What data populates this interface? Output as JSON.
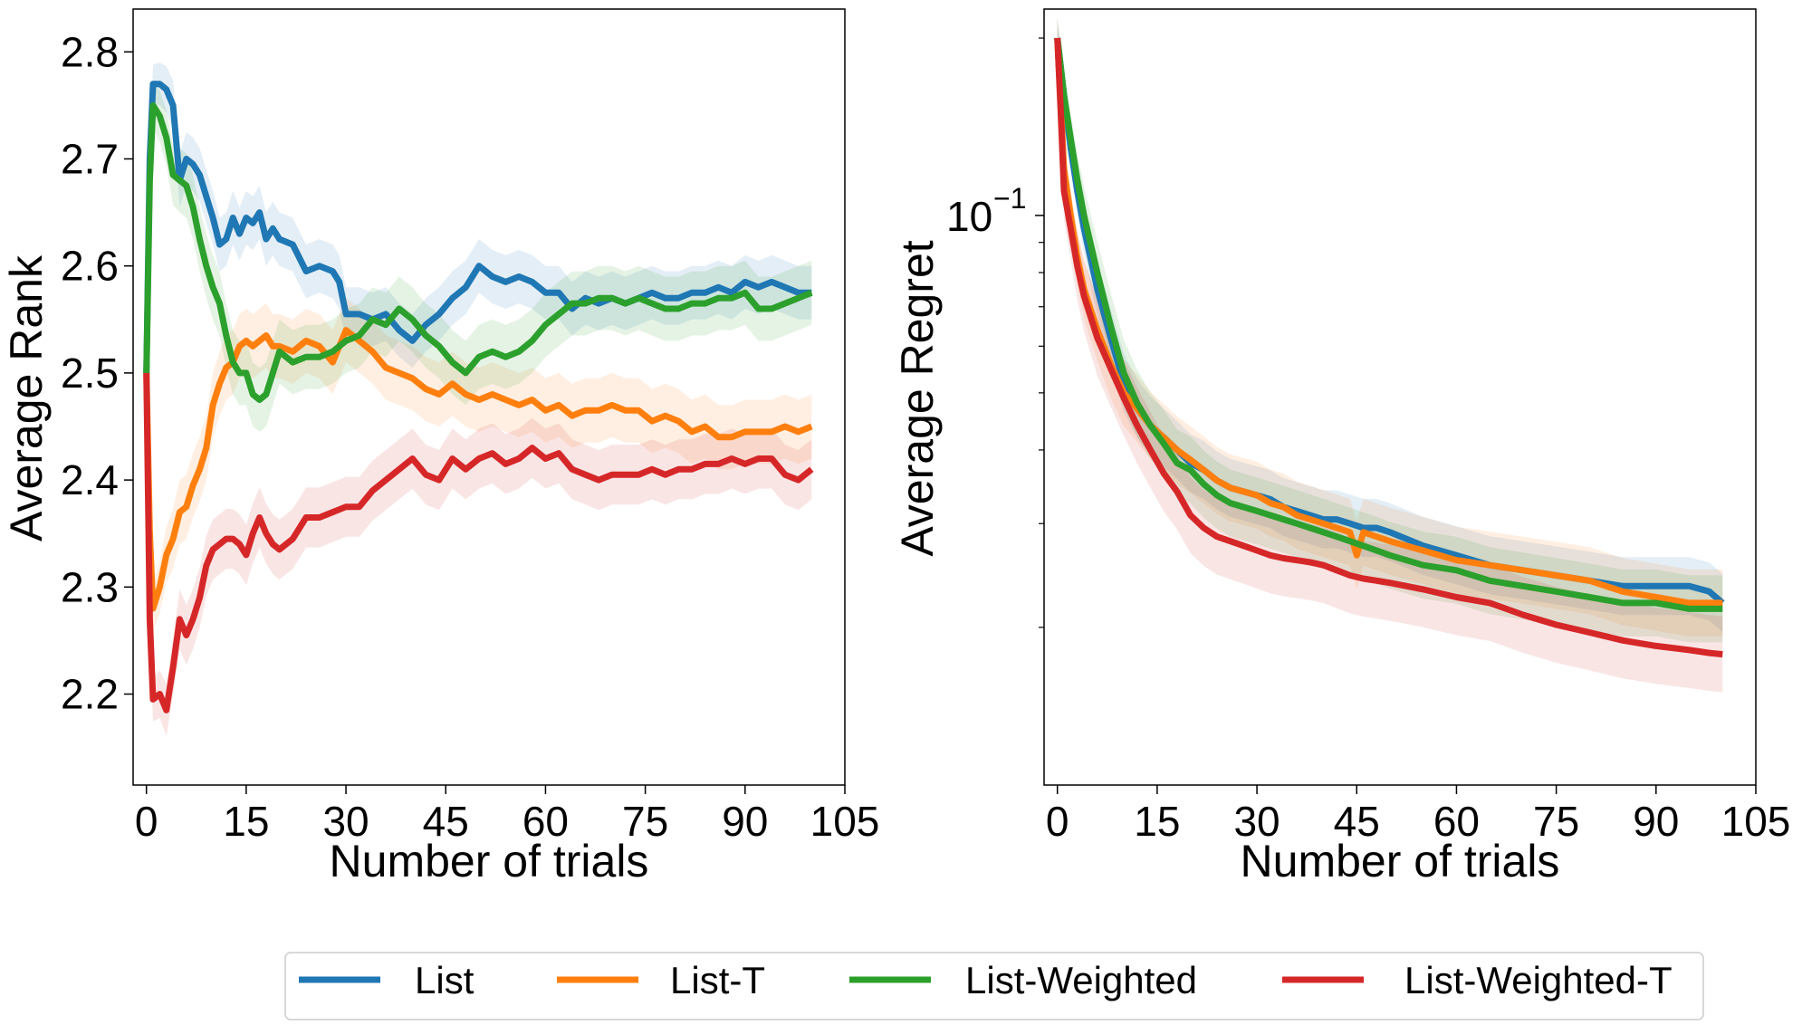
{
  "colors": {
    "List": "#1f77b4",
    "List-T": "#ff7f0e",
    "List-Weighted": "#2ca02c",
    "List-Weighted-T": "#d62728"
  },
  "legend": {
    "items": [
      "List",
      "List-T",
      "List-Weighted",
      "List-Weighted-T"
    ],
    "placement": "bottom-center"
  },
  "chart_data": [
    {
      "type": "line",
      "xlabel": "Number of trials",
      "ylabel": "Average Rank",
      "xlim": [
        -2,
        105
      ],
      "ylim": [
        2.115,
        2.84
      ],
      "xticks": [
        0,
        15,
        30,
        45,
        60,
        75,
        90,
        105
      ],
      "xtick_labels": [
        "0",
        "15",
        "30",
        "45",
        "60",
        "75",
        "90",
        "105"
      ],
      "yticks": [
        2.2,
        2.3,
        2.4,
        2.5,
        2.6,
        2.7,
        2.8
      ],
      "ytick_labels": [
        "2.2",
        "2.3",
        "2.4",
        "2.5",
        "2.6",
        "2.7",
        "2.8"
      ],
      "grid": false,
      "series": [
        {
          "name": "List",
          "x": [
            0,
            0.5,
            1,
            2,
            3,
            4,
            5,
            6,
            7,
            8,
            9,
            10,
            11,
            12,
            13,
            14,
            15,
            16,
            17,
            18,
            19,
            20,
            22,
            24,
            26,
            28,
            29,
            30,
            32,
            34,
            36,
            38,
            40,
            42,
            44,
            46,
            48,
            50,
            52,
            54,
            56,
            58,
            60,
            62,
            64,
            66,
            68,
            70,
            72,
            74,
            76,
            78,
            80,
            82,
            84,
            86,
            88,
            90,
            92,
            94,
            96,
            98,
            100
          ],
          "y": [
            2.5,
            2.7,
            2.77,
            2.77,
            2.765,
            2.75,
            2.68,
            2.7,
            2.695,
            2.685,
            2.665,
            2.645,
            2.62,
            2.625,
            2.645,
            2.63,
            2.645,
            2.64,
            2.65,
            2.625,
            2.635,
            2.625,
            2.62,
            2.595,
            2.6,
            2.595,
            2.585,
            2.555,
            2.555,
            2.55,
            2.555,
            2.54,
            2.53,
            2.545,
            2.555,
            2.57,
            2.58,
            2.6,
            2.59,
            2.585,
            2.59,
            2.585,
            2.575,
            2.575,
            2.56,
            2.57,
            2.565,
            2.57,
            2.565,
            2.57,
            2.575,
            2.57,
            2.57,
            2.575,
            2.575,
            2.58,
            2.575,
            2.585,
            2.58,
            2.585,
            2.58,
            2.575,
            2.575
          ],
          "band": 0.025
        },
        {
          "name": "List-T",
          "x": [
            0,
            0.5,
            1,
            2,
            3,
            4,
            5,
            6,
            7,
            8,
            9,
            10,
            11,
            12,
            13,
            14,
            15,
            16,
            17,
            18,
            19,
            20,
            22,
            24,
            26,
            28,
            30,
            32,
            34,
            36,
            38,
            40,
            42,
            44,
            46,
            48,
            50,
            52,
            54,
            56,
            58,
            60,
            62,
            64,
            66,
            68,
            70,
            72,
            74,
            76,
            78,
            80,
            82,
            84,
            86,
            88,
            90,
            92,
            94,
            96,
            98,
            100
          ],
          "y": [
            2.5,
            2.35,
            2.28,
            2.3,
            2.33,
            2.345,
            2.37,
            2.375,
            2.395,
            2.41,
            2.43,
            2.47,
            2.49,
            2.505,
            2.51,
            2.525,
            2.53,
            2.525,
            2.53,
            2.535,
            2.525,
            2.525,
            2.52,
            2.53,
            2.525,
            2.51,
            2.54,
            2.53,
            2.52,
            2.505,
            2.5,
            2.495,
            2.485,
            2.48,
            2.49,
            2.48,
            2.475,
            2.48,
            2.475,
            2.47,
            2.475,
            2.465,
            2.47,
            2.46,
            2.465,
            2.465,
            2.47,
            2.465,
            2.465,
            2.455,
            2.46,
            2.455,
            2.445,
            2.45,
            2.44,
            2.44,
            2.445,
            2.445,
            2.445,
            2.45,
            2.445,
            2.45
          ],
          "band": 0.03
        },
        {
          "name": "List-Weighted",
          "x": [
            0,
            0.5,
            1,
            2,
            3,
            4,
            5,
            6,
            7,
            8,
            9,
            10,
            11,
            12,
            13,
            14,
            15,
            16,
            17,
            18,
            19,
            20,
            22,
            24,
            26,
            28,
            30,
            32,
            34,
            36,
            38,
            40,
            42,
            44,
            46,
            48,
            50,
            52,
            54,
            56,
            58,
            60,
            62,
            64,
            66,
            68,
            70,
            72,
            74,
            76,
            78,
            80,
            82,
            84,
            86,
            88,
            90,
            92,
            94,
            96,
            98,
            100
          ],
          "y": [
            2.5,
            2.68,
            2.75,
            2.74,
            2.72,
            2.685,
            2.68,
            2.675,
            2.655,
            2.625,
            2.6,
            2.58,
            2.565,
            2.535,
            2.51,
            2.5,
            2.5,
            2.48,
            2.475,
            2.48,
            2.5,
            2.52,
            2.51,
            2.515,
            2.515,
            2.52,
            2.53,
            2.535,
            2.55,
            2.545,
            2.56,
            2.55,
            2.535,
            2.525,
            2.51,
            2.5,
            2.515,
            2.52,
            2.515,
            2.52,
            2.53,
            2.545,
            2.555,
            2.565,
            2.565,
            2.57,
            2.57,
            2.565,
            2.57,
            2.565,
            2.56,
            2.56,
            2.565,
            2.565,
            2.57,
            2.57,
            2.575,
            2.56,
            2.56,
            2.565,
            2.57,
            2.575
          ],
          "band": 0.03
        },
        {
          "name": "List-Weighted-T",
          "x": [
            0,
            0.5,
            1,
            2,
            3,
            4,
            5,
            6,
            7,
            8,
            9,
            10,
            11,
            12,
            13,
            14,
            15,
            16,
            17,
            18,
            19,
            20,
            22,
            24,
            26,
            28,
            30,
            32,
            34,
            36,
            38,
            40,
            42,
            44,
            46,
            48,
            50,
            52,
            54,
            56,
            58,
            60,
            62,
            64,
            66,
            68,
            70,
            72,
            74,
            76,
            78,
            80,
            82,
            84,
            86,
            88,
            90,
            92,
            94,
            96,
            98,
            100
          ],
          "y": [
            2.5,
            2.27,
            2.195,
            2.2,
            2.185,
            2.225,
            2.27,
            2.255,
            2.27,
            2.29,
            2.32,
            2.335,
            2.34,
            2.345,
            2.345,
            2.34,
            2.33,
            2.35,
            2.365,
            2.35,
            2.34,
            2.335,
            2.345,
            2.365,
            2.365,
            2.37,
            2.375,
            2.375,
            2.39,
            2.4,
            2.41,
            2.42,
            2.405,
            2.4,
            2.42,
            2.41,
            2.42,
            2.425,
            2.415,
            2.42,
            2.43,
            2.42,
            2.425,
            2.41,
            2.405,
            2.4,
            2.405,
            2.405,
            2.405,
            2.41,
            2.405,
            2.41,
            2.41,
            2.415,
            2.415,
            2.42,
            2.415,
            2.42,
            2.42,
            2.405,
            2.4,
            2.41
          ],
          "band": 0.028
        }
      ]
    },
    {
      "type": "line",
      "xlabel": "Number of trials",
      "ylabel": "Average Regret",
      "yscale": "log",
      "xlim": [
        -2,
        105
      ],
      "ylim": [
        0.0108,
        0.224
      ],
      "xticks": [
        0,
        15,
        30,
        45,
        60,
        75,
        90,
        105
      ],
      "xtick_labels": [
        "0",
        "15",
        "30",
        "45",
        "60",
        "75",
        "90",
        "105"
      ],
      "ytick_major_label": "10",
      "ytick_major_exponent": "−1",
      "ytick_major": 0.1,
      "ytick_minor": [
        0.02,
        0.03,
        0.04,
        0.05,
        0.06,
        0.07,
        0.08,
        0.09,
        0.2
      ],
      "grid": false,
      "series": [
        {
          "name": "List",
          "x": [
            0,
            1,
            2,
            3,
            4,
            6,
            8,
            10,
            12,
            14,
            16,
            18,
            20,
            22,
            24,
            26,
            28,
            30,
            32,
            34,
            36,
            38,
            40,
            42,
            44,
            46,
            48,
            50,
            55,
            60,
            65,
            70,
            75,
            80,
            85,
            90,
            95,
            98,
            100
          ],
          "y": [
            0.2,
            0.16,
            0.13,
            0.11,
            0.095,
            0.075,
            0.062,
            0.052,
            0.047,
            0.044,
            0.042,
            0.04,
            0.038,
            0.037,
            0.0355,
            0.0345,
            0.034,
            0.0335,
            0.033,
            0.032,
            0.0315,
            0.031,
            0.0305,
            0.0305,
            0.03,
            0.0295,
            0.0295,
            0.029,
            0.0275,
            0.0265,
            0.0255,
            0.025,
            0.0245,
            0.024,
            0.0235,
            0.0235,
            0.0235,
            0.023,
            0.022
          ],
          "band": 0.12
        },
        {
          "name": "List-T",
          "x": [
            0,
            1,
            2,
            3,
            4,
            6,
            8,
            10,
            12,
            14,
            16,
            18,
            20,
            22,
            24,
            26,
            28,
            30,
            32,
            34,
            36,
            38,
            40,
            42,
            44,
            45,
            46,
            48,
            50,
            55,
            60,
            65,
            70,
            75,
            80,
            85,
            90,
            95,
            98,
            100
          ],
          "y": [
            0.2,
            0.12,
            0.1,
            0.085,
            0.075,
            0.064,
            0.056,
            0.05,
            0.047,
            0.044,
            0.042,
            0.04,
            0.0385,
            0.037,
            0.0355,
            0.0345,
            0.034,
            0.0335,
            0.0325,
            0.032,
            0.031,
            0.0305,
            0.03,
            0.0295,
            0.029,
            0.0265,
            0.029,
            0.0285,
            0.028,
            0.027,
            0.026,
            0.0255,
            0.025,
            0.0245,
            0.024,
            0.023,
            0.0225,
            0.022,
            0.022,
            0.022
          ],
          "band": 0.14
        },
        {
          "name": "List-Weighted",
          "x": [
            0,
            1,
            2,
            3,
            4,
            6,
            8,
            10,
            12,
            14,
            16,
            18,
            20,
            22,
            24,
            26,
            28,
            30,
            32,
            34,
            36,
            38,
            40,
            42,
            44,
            46,
            48,
            50,
            55,
            60,
            65,
            70,
            75,
            80,
            85,
            90,
            95,
            100
          ],
          "y": [
            0.2,
            0.16,
            0.135,
            0.115,
            0.1,
            0.08,
            0.065,
            0.054,
            0.048,
            0.044,
            0.041,
            0.038,
            0.037,
            0.035,
            0.0335,
            0.0325,
            0.032,
            0.0315,
            0.031,
            0.0305,
            0.03,
            0.0295,
            0.029,
            0.0285,
            0.028,
            0.0275,
            0.027,
            0.0265,
            0.0255,
            0.025,
            0.024,
            0.0235,
            0.023,
            0.0225,
            0.022,
            0.022,
            0.0215,
            0.0215
          ],
          "band": 0.14
        },
        {
          "name": "List-Weighted-T",
          "x": [
            0,
            0.5,
            1,
            2,
            3,
            4,
            6,
            8,
            10,
            12,
            14,
            16,
            18,
            20,
            22,
            24,
            26,
            28,
            30,
            32,
            34,
            36,
            38,
            40,
            42,
            44,
            46,
            48,
            50,
            55,
            60,
            65,
            70,
            75,
            80,
            85,
            90,
            95,
            98,
            100
          ],
          "y": [
            0.2,
            0.15,
            0.11,
            0.095,
            0.082,
            0.073,
            0.062,
            0.055,
            0.049,
            0.044,
            0.04,
            0.0365,
            0.034,
            0.031,
            0.0295,
            0.0285,
            0.028,
            0.0275,
            0.027,
            0.0265,
            0.0262,
            0.026,
            0.0258,
            0.0255,
            0.025,
            0.0245,
            0.0242,
            0.024,
            0.0238,
            0.0232,
            0.0225,
            0.022,
            0.021,
            0.0202,
            0.0196,
            0.019,
            0.0186,
            0.0183,
            0.0181,
            0.018
          ],
          "band": 0.16
        }
      ]
    }
  ]
}
